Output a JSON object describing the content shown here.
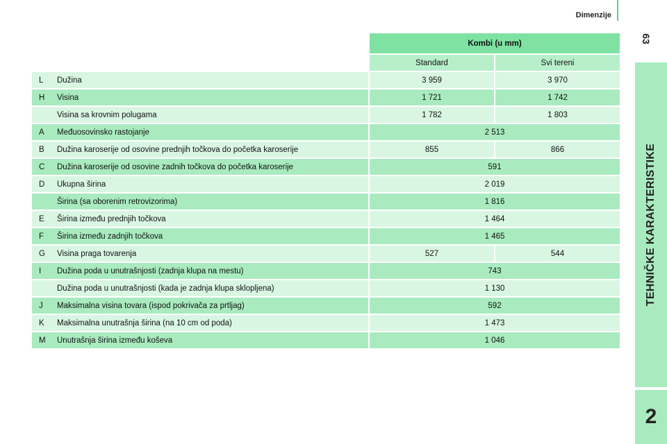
{
  "header": {
    "section_title": "Dimenzije",
    "page_number": "63"
  },
  "side_tab": {
    "label": "TEHNIČKE KARAKTERISTIKE",
    "chapter": "2"
  },
  "table": {
    "group_header": "Kombi (u mm)",
    "columns": [
      "Standard",
      "Svi tereni"
    ],
    "rows": [
      {
        "code": "L",
        "desc": "Dužina",
        "values": [
          "3 959",
          "3 970"
        ]
      },
      {
        "code": "H",
        "desc": "Visina",
        "values": [
          "1 721",
          "1 742"
        ]
      },
      {
        "code": "",
        "desc": "Visina sa krovnim polugama",
        "values": [
          "1 782",
          "1 803"
        ]
      },
      {
        "code": "A",
        "desc": "Međuosovinsko rastojanje",
        "values": [
          "2 513"
        ]
      },
      {
        "code": "B",
        "desc": "Dužina karoserije od osovine prednjih točkova do početka karoserije",
        "values": [
          "855",
          "866"
        ]
      },
      {
        "code": "C",
        "desc": "Dužina karoserije od osovine zadnih točkova do početka karoserije",
        "values": [
          "591"
        ]
      },
      {
        "code": "D",
        "desc": "Ukupna širina",
        "values": [
          "2 019"
        ]
      },
      {
        "code": "",
        "desc": "Širina (sa oborenim retrovizorima)",
        "values": [
          "1 816"
        ]
      },
      {
        "code": "E",
        "desc": "Širina između prednjih točkova",
        "values": [
          "1 464"
        ]
      },
      {
        "code": "F",
        "desc": "Širina između zadnjih točkova",
        "values": [
          "1 465"
        ]
      },
      {
        "code": "G",
        "desc": "Visina praga tovarenja",
        "values": [
          "527",
          "544"
        ]
      },
      {
        "code": "I",
        "desc": "Dužina poda u unutrašnjosti (zadnja klupa na mestu)",
        "values": [
          "743"
        ]
      },
      {
        "code": "",
        "desc": "Dužina poda u unutrašnjosti (kada je zadnja klupa sklopljena)",
        "values": [
          "1 130"
        ]
      },
      {
        "code": "J",
        "desc": "Maksimalna visina tovara (ispod pokrivača za prtljag)",
        "values": [
          "592"
        ]
      },
      {
        "code": "K",
        "desc": "Maksimalna unutrašnja širina (na 10 cm od poda)",
        "values": [
          "1 473"
        ]
      },
      {
        "code": "M",
        "desc": "Unutrašnja širina između koševa",
        "values": [
          "1 046"
        ]
      }
    ]
  }
}
